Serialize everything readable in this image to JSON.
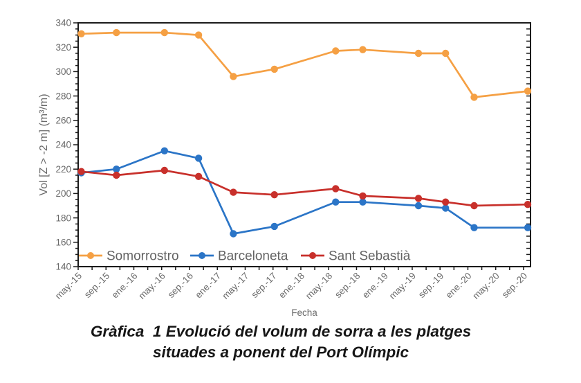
{
  "figure": {
    "caption_line1": "Gràfica  1 Evolució del volum de sorra a les platges",
    "caption_line2": "situades a ponent del Port Olímpic"
  },
  "chart_data": {
    "type": "line",
    "title": "",
    "xlabel": "Fecha",
    "ylabel": "Vol [Z > -2 m] (m³/m)",
    "ylim": [
      140,
      340
    ],
    "ytick_step": 20,
    "ytick_minor_step": 5,
    "x_axis_span_months": 65,
    "xtick_interval_months": 4,
    "xminor_interval_months": 2,
    "xtick_labels": [
      "may.-15",
      "sep.-15",
      "ene.-16",
      "may.-16",
      "sep.-16",
      "ene.-17",
      "may.-17",
      "sep.-17",
      "ene.-18",
      "may.-18",
      "sep.-18",
      "ene.-19",
      "may.-19",
      "sep.-19",
      "ene.-20",
      "may.-20",
      "sep.-20"
    ],
    "x_months": [
      0.45,
      5.5,
      12.4,
      17.3,
      22.3,
      28.2,
      37.0,
      40.9,
      48.9,
      52.8,
      56.9,
      64.6
    ],
    "series": [
      {
        "name": "Somorrostro",
        "color": "#F5A044",
        "values": [
          331,
          332,
          332,
          330,
          296,
          302,
          317,
          318,
          315,
          315,
          279,
          284
        ]
      },
      {
        "name": "Barceloneta",
        "color": "#2B75C7",
        "values": [
          217,
          220,
          235,
          229,
          167,
          173,
          193,
          193,
          190,
          188,
          172,
          172
        ]
      },
      {
        "name": "Sant Sebastià",
        "color": "#C8302B",
        "values": [
          218,
          215,
          219,
          214,
          201,
          199,
          204,
          198,
          196,
          193,
          190,
          191
        ]
      }
    ],
    "legend_position": "bottom-left-inside",
    "grid": false,
    "axis_color": "#1a1a1a",
    "text_color": "#696969",
    "background": "#ffffff"
  }
}
